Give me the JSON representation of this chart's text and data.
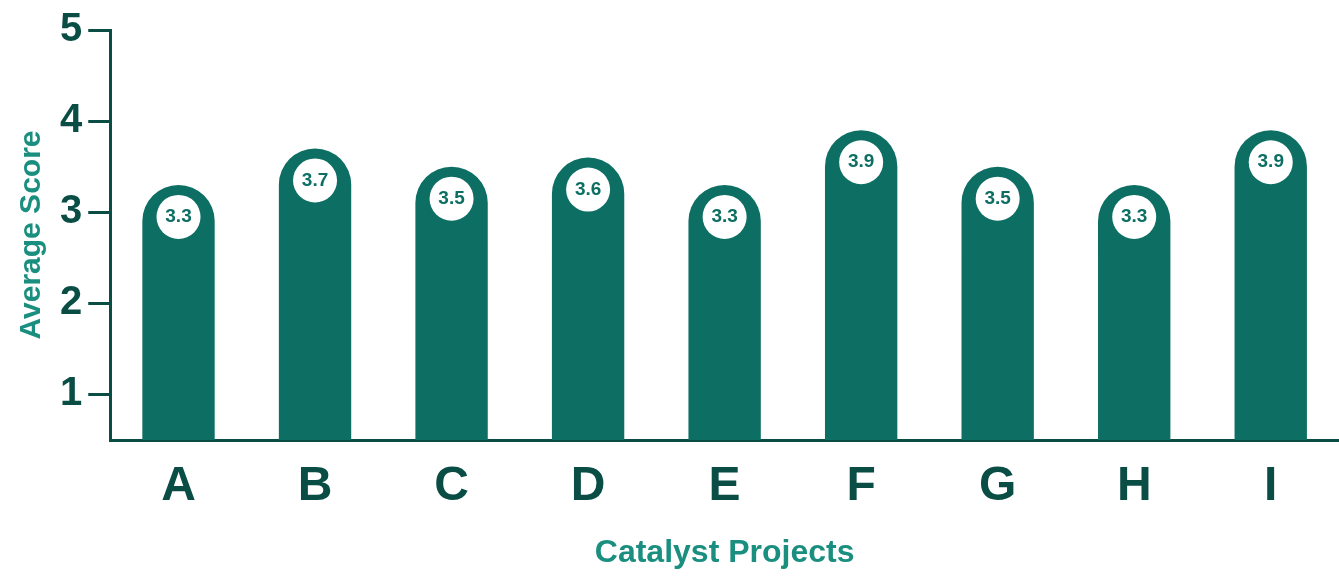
{
  "chart_data": {
    "type": "bar",
    "xlabel": "Catalyst Projects",
    "ylabel": "Average Score",
    "categories": [
      "A",
      "B",
      "C",
      "D",
      "E",
      "F",
      "G",
      "H",
      "I"
    ],
    "values": [
      3.3,
      3.7,
      3.5,
      3.6,
      3.3,
      3.9,
      3.5,
      3.3,
      3.9
    ],
    "color": "#0d6e63",
    "ylim": [
      0.5,
      5
    ],
    "yticks": [
      1,
      2,
      3,
      4,
      5
    ],
    "grid": false,
    "legend": false,
    "data_labels": true
  }
}
